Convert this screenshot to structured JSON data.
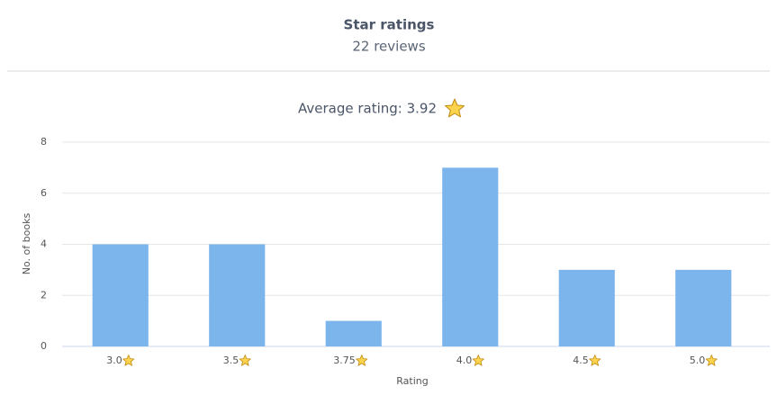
{
  "chart_data": {
    "type": "bar",
    "title": "Star ratings",
    "subtitle": "22 reviews",
    "annotation": "Average rating: 3.92",
    "y_label": "No. of books",
    "x_label": "Rating",
    "categories": [
      "3.0",
      "3.5",
      "3.75",
      "4.0",
      "4.5",
      "5.0"
    ],
    "values": [
      4,
      4,
      1,
      7,
      3,
      3
    ],
    "color": "#7cb5ec",
    "ylim": [
      0,
      8
    ],
    "yticks": [
      0,
      2,
      4,
      6,
      8
    ],
    "grid": true
  }
}
